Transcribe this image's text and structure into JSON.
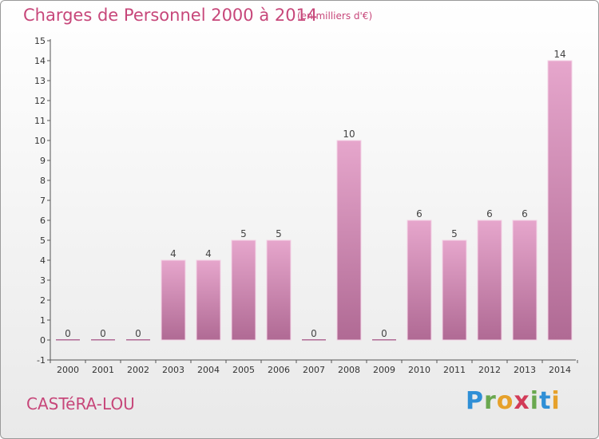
{
  "title": "Charges de Personnel 2000 à 2014",
  "subtitle": "(en milliers d'€)",
  "town": "CASTéRA-LOU",
  "logo": {
    "p": "P",
    "r": "r",
    "o": "o",
    "x": "x",
    "i": "i",
    "t": "t",
    "i2": "i"
  },
  "colors": {
    "accent": "#c7477a",
    "bar_top": "#e6a6cc",
    "bar_bottom": "#b06a94"
  },
  "chart_data": {
    "type": "bar",
    "title": "Charges de Personnel 2000 à 2014",
    "subtitle": "(en milliers d'€)",
    "xlabel": "",
    "ylabel": "",
    "categories": [
      "2000",
      "2001",
      "2002",
      "2003",
      "2004",
      "2005",
      "2006",
      "2007",
      "2008",
      "2009",
      "2010",
      "2011",
      "2012",
      "2013",
      "2014"
    ],
    "values": [
      0,
      0,
      0,
      4,
      4,
      5,
      5,
      0,
      10,
      0,
      6,
      5,
      6,
      6,
      14
    ],
    "data_labels": [
      "0",
      "0",
      "0",
      "4",
      "4",
      "5",
      "5",
      "0",
      "10",
      "0",
      "6",
      "5",
      "6",
      "6",
      "14"
    ],
    "ylim": [
      -1,
      15
    ],
    "yticks": [
      "-1",
      "0",
      "1",
      "2",
      "3",
      "4",
      "5",
      "6",
      "7",
      "8",
      "9",
      "10",
      "11",
      "12",
      "13",
      "14",
      "15"
    ],
    "grid": false,
    "legend": "none"
  }
}
